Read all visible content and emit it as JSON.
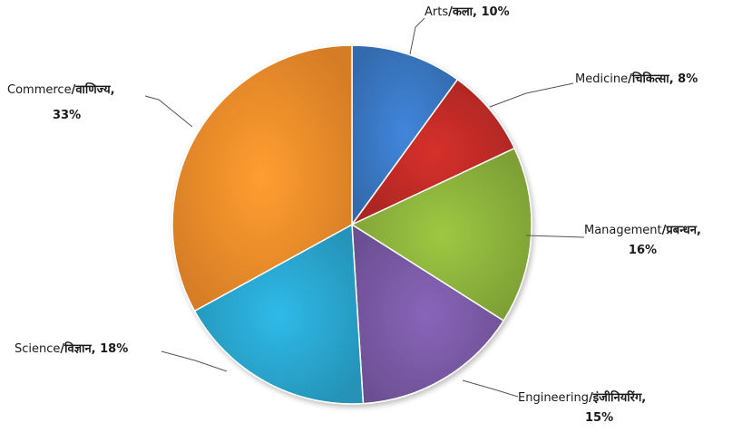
{
  "chart_data": {
    "type": "pie",
    "slices": [
      {
        "label_en": "Arts",
        "label_hi": "कला",
        "value": 10,
        "pct_label": "10%",
        "color": "#3a78c4"
      },
      {
        "label_en": "Medicine",
        "label_hi": "चिकित्सा",
        "value": 8,
        "pct_label": "8%",
        "color": "#c02b27"
      },
      {
        "label_en": "Management",
        "label_hi": "प्रबन्धन",
        "value": 16,
        "pct_label": "16%",
        "color": "#8db33c"
      },
      {
        "label_en": "Engineering",
        "label_hi": "इंजीनियरिंग",
        "value": 15,
        "pct_label": "15%",
        "color": "#7a5aa6"
      },
      {
        "label_en": "Science",
        "label_hi": "विज्ञान",
        "value": 18,
        "pct_label": "18%",
        "color": "#2aa6cf"
      },
      {
        "label_en": "Commerce",
        "label_hi": "वाणिज्य",
        "value": 33,
        "pct_label": "33%",
        "color": "#f28d2b"
      }
    ],
    "start": "12 o'clock",
    "direction": "clockwise",
    "legend": "none",
    "data_labels": "outside with leader lines"
  }
}
